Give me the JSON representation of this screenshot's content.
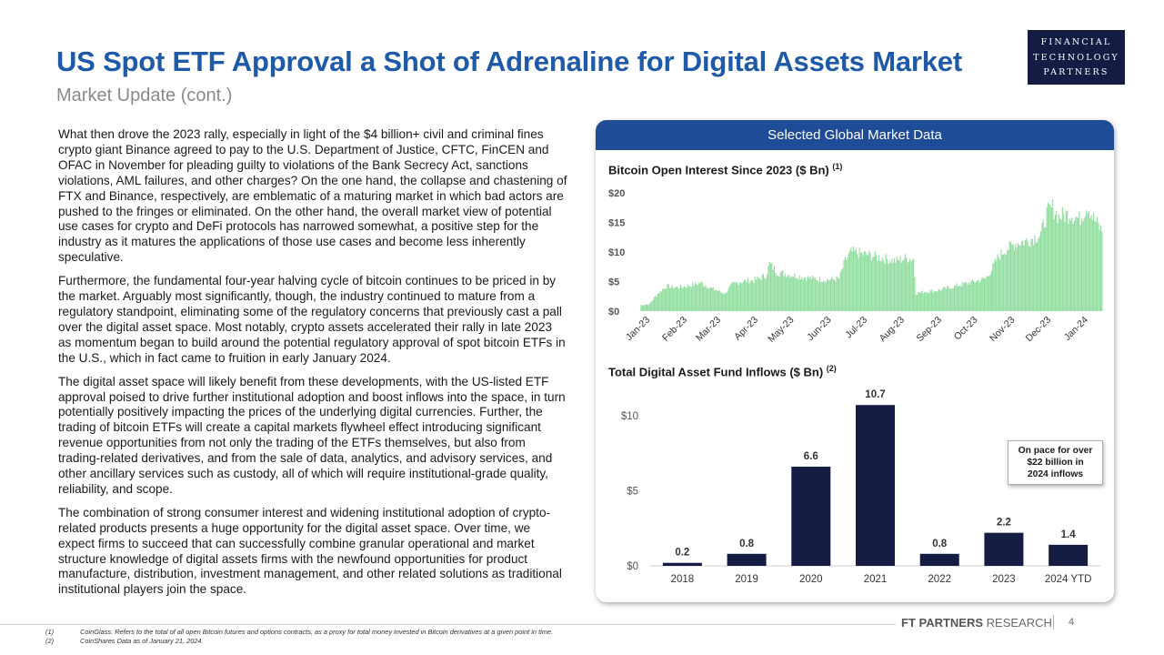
{
  "header": {
    "title": "US Spot ETF Approval a Shot of Adrenaline for Digital Assets Market",
    "subtitle": "Market Update (cont.)"
  },
  "logo": {
    "line1": "FINANCIAL",
    "line2": "TECHNOLOGY",
    "line3": "PARTNERS"
  },
  "body": {
    "paragraphs": [
      "What then drove the 2023 rally, especially in light of the $4 billion+ civil and criminal fines crypto giant Binance agreed to pay to the U.S. Department of Justice, CFTC, FinCEN and OFAC in November for pleading guilty to violations of the Bank Secrecy Act, sanctions violations, AML failures, and other charges? On the one hand, the collapse and chastening of FTX and Binance, respectively, are emblematic of a maturing market in which bad actors are pushed to the fringes or eliminated. On the other hand, the overall market view of potential use cases for crypto and DeFi protocols has narrowed somewhat, a positive step for the industry as it matures the applications of those use cases and become less inherently speculative.",
      "Furthermore, the fundamental four-year halving cycle of bitcoin continues to be priced in by the market. Arguably most significantly, though, the industry continued to mature from a regulatory standpoint, eliminating some of the regulatory concerns that previously cast a pall over the digital asset space. Most notably, crypto assets accelerated their rally in late 2023 as momentum began to build around the potential regulatory approval of spot bitcoin ETFs in the U.S., which in fact came to fruition in early January 2024.",
      "The digital asset space will likely benefit from these developments, with the US-listed ETF approval poised to drive further institutional adoption and boost inflows into the space, in turn potentially positively impacting the prices of the underlying digital currencies. Further, the trading of bitcoin ETFs will create a capital markets flywheel effect introducing significant revenue opportunities from not only the trading of the ETFs themselves, but also from trading-related derivatives, and from the sale of data, analytics, and advisory services, and other ancillary services such as custody, all of which will require institutional-grade quality, reliability, and scope.",
      "The combination of strong consumer interest and widening institutional adoption of crypto-related products presents a huge opportunity for the digital asset space. Over time, we expect firms to succeed that can successfully combine granular operational and market structure knowledge of digital assets firms with the newfound opportunities for product manufacture, distribution, investment management, and other related solutions as traditional institutional players join the space."
    ]
  },
  "panel": {
    "header": "Selected Global Market Data"
  },
  "callout": {
    "line1": "On pace for over",
    "line2": "$22 billion in",
    "line3": "2024 inflows"
  },
  "footer": {
    "brand_bold": "FT PARTNERS",
    "brand_rest": " RESEARCH",
    "page": "4"
  },
  "footnotes": [
    {
      "num": "(1)",
      "text": "CoinGlass. Refers to the total of all open Bitcoin futures and options contracts, as a proxy for total money invested in Bitcoin derivatives at a given point in time."
    },
    {
      "num": "(2)",
      "text": "CoinShares Data as of January 21, 2024."
    }
  ],
  "colors": {
    "title": "#1e5aa8",
    "panel_header": "#1e4c96",
    "bars": "#141c44",
    "area": "#8ddc9c",
    "logo_bg": "#141c44"
  },
  "chart_data": [
    {
      "type": "bar",
      "title": "Bitcoin Open Interest Since 2023 ($ Bn)",
      "title_note": "(1)",
      "unit": "$ Bn",
      "categories": [
        "Jan-23",
        "Feb-23",
        "Mar-23",
        "Apr-23",
        "May-23",
        "Jun-23",
        "Jul-23",
        "Aug-23",
        "Sep-23",
        "Oct-23",
        "Nov-23",
        "Dec-23",
        "Jan-24"
      ],
      "ytick_labels": [
        "$0",
        "$5",
        "$10",
        "$15",
        "$20"
      ],
      "ylim": [
        0,
        20
      ],
      "yticks": [
        0,
        5,
        10,
        15,
        20
      ],
      "keypoints": [
        [
          "2023-01-01",
          1.0
        ],
        [
          "2023-01-08",
          1.2
        ],
        [
          "2023-01-15",
          3.0
        ],
        [
          "2023-01-22",
          4.2
        ],
        [
          "2023-02-01",
          4.0
        ],
        [
          "2023-02-10",
          4.3
        ],
        [
          "2023-02-20",
          4.8
        ],
        [
          "2023-03-01",
          3.8
        ],
        [
          "2023-03-08",
          3.3
        ],
        [
          "2023-03-12",
          3.0
        ],
        [
          "2023-03-18",
          4.5
        ],
        [
          "2023-03-25",
          5.0
        ],
        [
          "2023-04-05",
          5.2
        ],
        [
          "2023-04-15",
          6.0
        ],
        [
          "2023-04-18",
          8.0
        ],
        [
          "2023-04-25",
          6.5
        ],
        [
          "2023-05-05",
          6.2
        ],
        [
          "2023-05-15",
          5.8
        ],
        [
          "2023-05-25",
          5.5
        ],
        [
          "2023-06-05",
          5.3
        ],
        [
          "2023-06-15",
          5.5
        ],
        [
          "2023-06-20",
          8.5
        ],
        [
          "2023-06-25",
          10.0
        ],
        [
          "2023-07-01",
          9.8
        ],
        [
          "2023-07-10",
          9.5
        ],
        [
          "2023-07-20",
          9.0
        ],
        [
          "2023-08-01",
          8.5
        ],
        [
          "2023-08-10",
          9.0
        ],
        [
          "2023-08-16",
          8.8
        ],
        [
          "2023-08-18",
          3.0
        ],
        [
          "2023-08-25",
          3.3
        ],
        [
          "2023-09-05",
          3.5
        ],
        [
          "2023-09-15",
          4.0
        ],
        [
          "2023-09-25",
          4.5
        ],
        [
          "2023-10-05",
          5.0
        ],
        [
          "2023-10-15",
          5.5
        ],
        [
          "2023-10-20",
          7.0
        ],
        [
          "2023-10-25",
          9.0
        ],
        [
          "2023-11-01",
          10.5
        ],
        [
          "2023-11-10",
          11.5
        ],
        [
          "2023-11-20",
          12.0
        ],
        [
          "2023-11-30",
          13.0
        ],
        [
          "2023-12-05",
          16.5
        ],
        [
          "2023-12-10",
          17.5
        ],
        [
          "2023-12-15",
          16.0
        ],
        [
          "2023-12-25",
          16.5
        ],
        [
          "2024-01-01",
          15.5
        ],
        [
          "2024-01-08",
          18.0
        ],
        [
          "2024-01-12",
          16.0
        ],
        [
          "2024-01-20",
          13.5
        ]
      ]
    },
    {
      "type": "bar",
      "title": "Total Digital Asset Fund Inflows ($ Bn)",
      "title_note": "(2)",
      "unit": "$ Bn",
      "categories": [
        "2018",
        "2019",
        "2020",
        "2021",
        "2022",
        "2023",
        "2024 YTD"
      ],
      "values": [
        0.2,
        0.8,
        6.6,
        10.7,
        0.8,
        2.2,
        1.4
      ],
      "value_labels": [
        "0.2",
        "0.8",
        "6.6",
        "10.7",
        "0.8",
        "2.2",
        "1.4"
      ],
      "ytick_labels": [
        "$0",
        "$5",
        "$10"
      ],
      "ylim": [
        0,
        11.5
      ],
      "yticks": [
        0,
        5,
        10
      ]
    }
  ]
}
